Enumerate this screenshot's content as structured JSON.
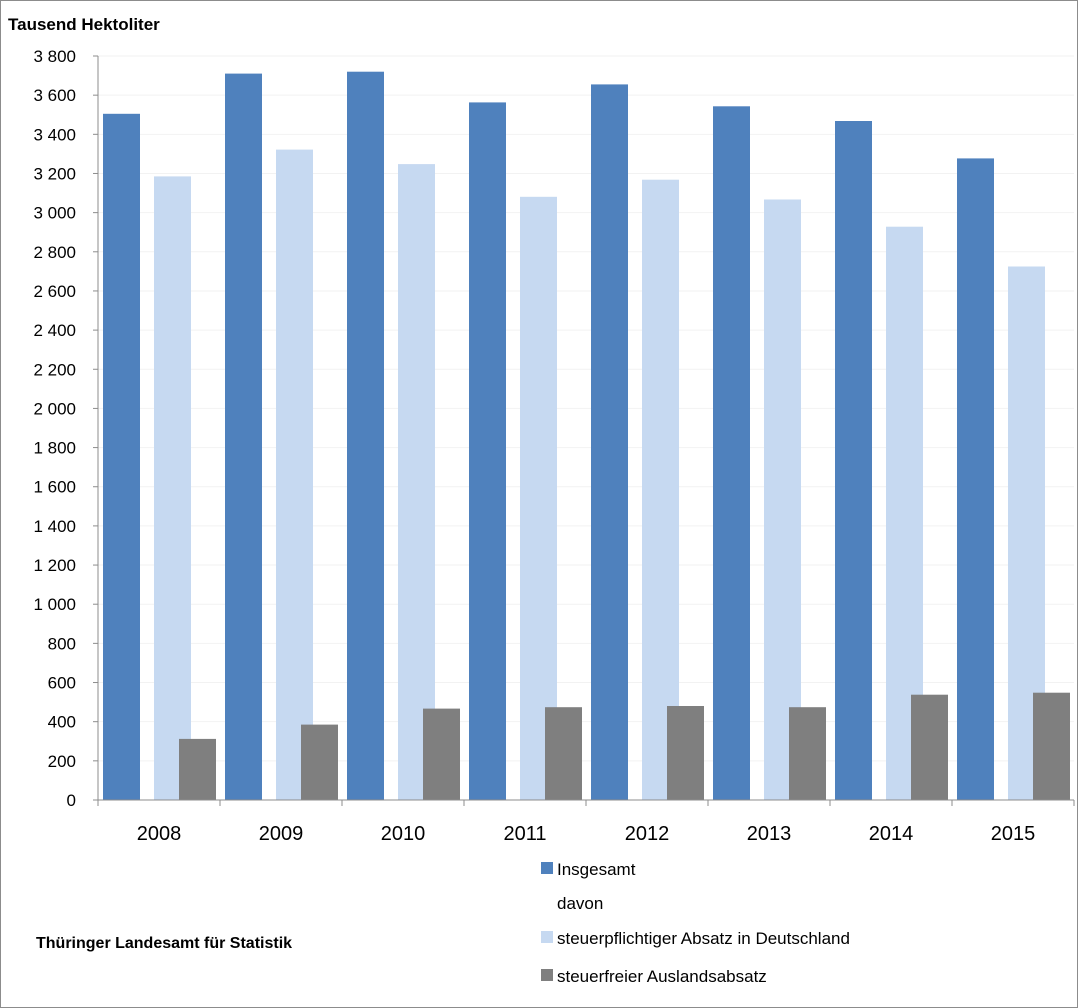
{
  "chart_data": {
    "type": "bar",
    "title": "",
    "ylabel": "Tausend Hektoliter",
    "xlabel": "",
    "ylim": [
      0,
      3800
    ],
    "ytick_step": 200,
    "categories": [
      "2008",
      "2009",
      "2010",
      "2011",
      "2012",
      "2013",
      "2014",
      "2015"
    ],
    "series": [
      {
        "name": "Insgesamt",
        "color": "#4f81bd",
        "values": [
          3505,
          3710,
          3720,
          3563,
          3655,
          3543,
          3468,
          3277
        ]
      },
      {
        "name": "steuerpflichtiger Absatz in Deutschland",
        "color": "#c6d9f1",
        "values": [
          3185,
          3322,
          3248,
          3081,
          3168,
          3067,
          2928,
          2725
        ]
      },
      {
        "name": "steuerfreier Auslandsabsatz",
        "color": "#7f7f7f",
        "values": [
          312,
          385,
          467,
          474,
          480,
          474,
          538,
          548
        ]
      }
    ],
    "legend": {
      "placement": "bottom-right",
      "davon_label": "davon"
    },
    "grid": true
  },
  "footer": {
    "source": "Thüringer Landesamt für Statistik"
  }
}
